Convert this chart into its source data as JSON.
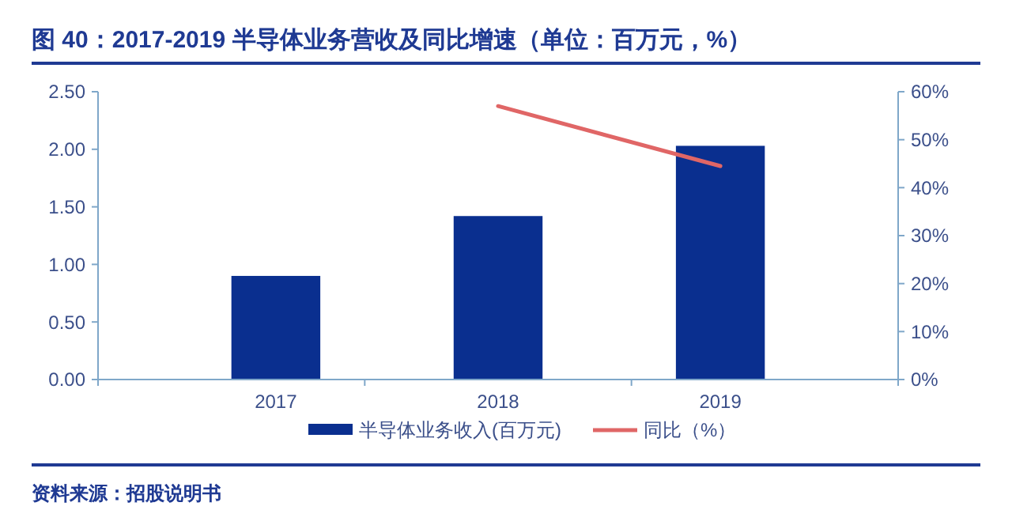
{
  "chart_data": {
    "type": "bar",
    "title": "图 40：2017-2019 半导体业务营收及同比增速（单位：百万元，%）",
    "categories": [
      "2017",
      "2018",
      "2019"
    ],
    "series": [
      {
        "name": "半导体业务收入(百万元)",
        "color": "#0a2f8f",
        "values": [
          0.9,
          1.42,
          2.03
        ]
      },
      {
        "name": "同比（%）",
        "type": "line",
        "axis": "y2",
        "color": "#e06666",
        "values": [
          null,
          57,
          44.5
        ]
      }
    ],
    "ylim": [
      0,
      2.5
    ],
    "yticks": [
      {
        "value": 0,
        "label": "0.00"
      },
      {
        "value": 0.5,
        "label": "0.50"
      },
      {
        "value": 1,
        "label": "1.00"
      },
      {
        "value": 1.5,
        "label": "1.50"
      },
      {
        "value": 2,
        "label": "2.00"
      },
      {
        "value": 2.5,
        "label": "2.50"
      }
    ],
    "y2lim": [
      0,
      60
    ],
    "y2ticks": [
      {
        "value": 0,
        "label": "0%"
      },
      {
        "value": 10,
        "label": "10%"
      },
      {
        "value": 20,
        "label": "20%"
      },
      {
        "value": 30,
        "label": "30%"
      },
      {
        "value": 40,
        "label": "40%"
      },
      {
        "value": 50,
        "label": "50%"
      },
      {
        "value": 60,
        "label": "60%"
      }
    ],
    "legend": "bottom",
    "grid": false,
    "annotations": [
      "资料来源：招股说明书"
    ]
  }
}
